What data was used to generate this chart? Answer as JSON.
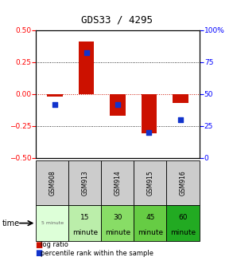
{
  "title": "GDS33 / 4295",
  "samples": [
    "GSM908",
    "GSM913",
    "GSM914",
    "GSM915",
    "GSM916"
  ],
  "log_ratio": [
    -0.02,
    0.41,
    -0.17,
    -0.31,
    -0.07
  ],
  "percentile": [
    42,
    82,
    42,
    20,
    30
  ],
  "time_labels_top": [
    "5 minute",
    "15",
    "30",
    "45",
    "60"
  ],
  "time_labels_bot": [
    "",
    "minute",
    "minute",
    "minute",
    "minute"
  ],
  "time_colors": [
    "#ddffd8",
    "#bbeeaa",
    "#88dd66",
    "#66cc44",
    "#22aa22"
  ],
  "ylim_left": [
    -0.5,
    0.5
  ],
  "ylim_right": [
    0,
    100
  ],
  "yticks_left": [
    -0.5,
    -0.25,
    0,
    0.25,
    0.5
  ],
  "yticks_right": [
    0,
    25,
    50,
    75,
    100
  ],
  "bar_color": "#cc1100",
  "dot_color": "#1133cc",
  "zero_line_color": "#cc1100",
  "bg_color": "#ffffff",
  "gsm_bg": "#cccccc",
  "legend_red": "log ratio",
  "legend_blue": "percentile rank within the sample"
}
